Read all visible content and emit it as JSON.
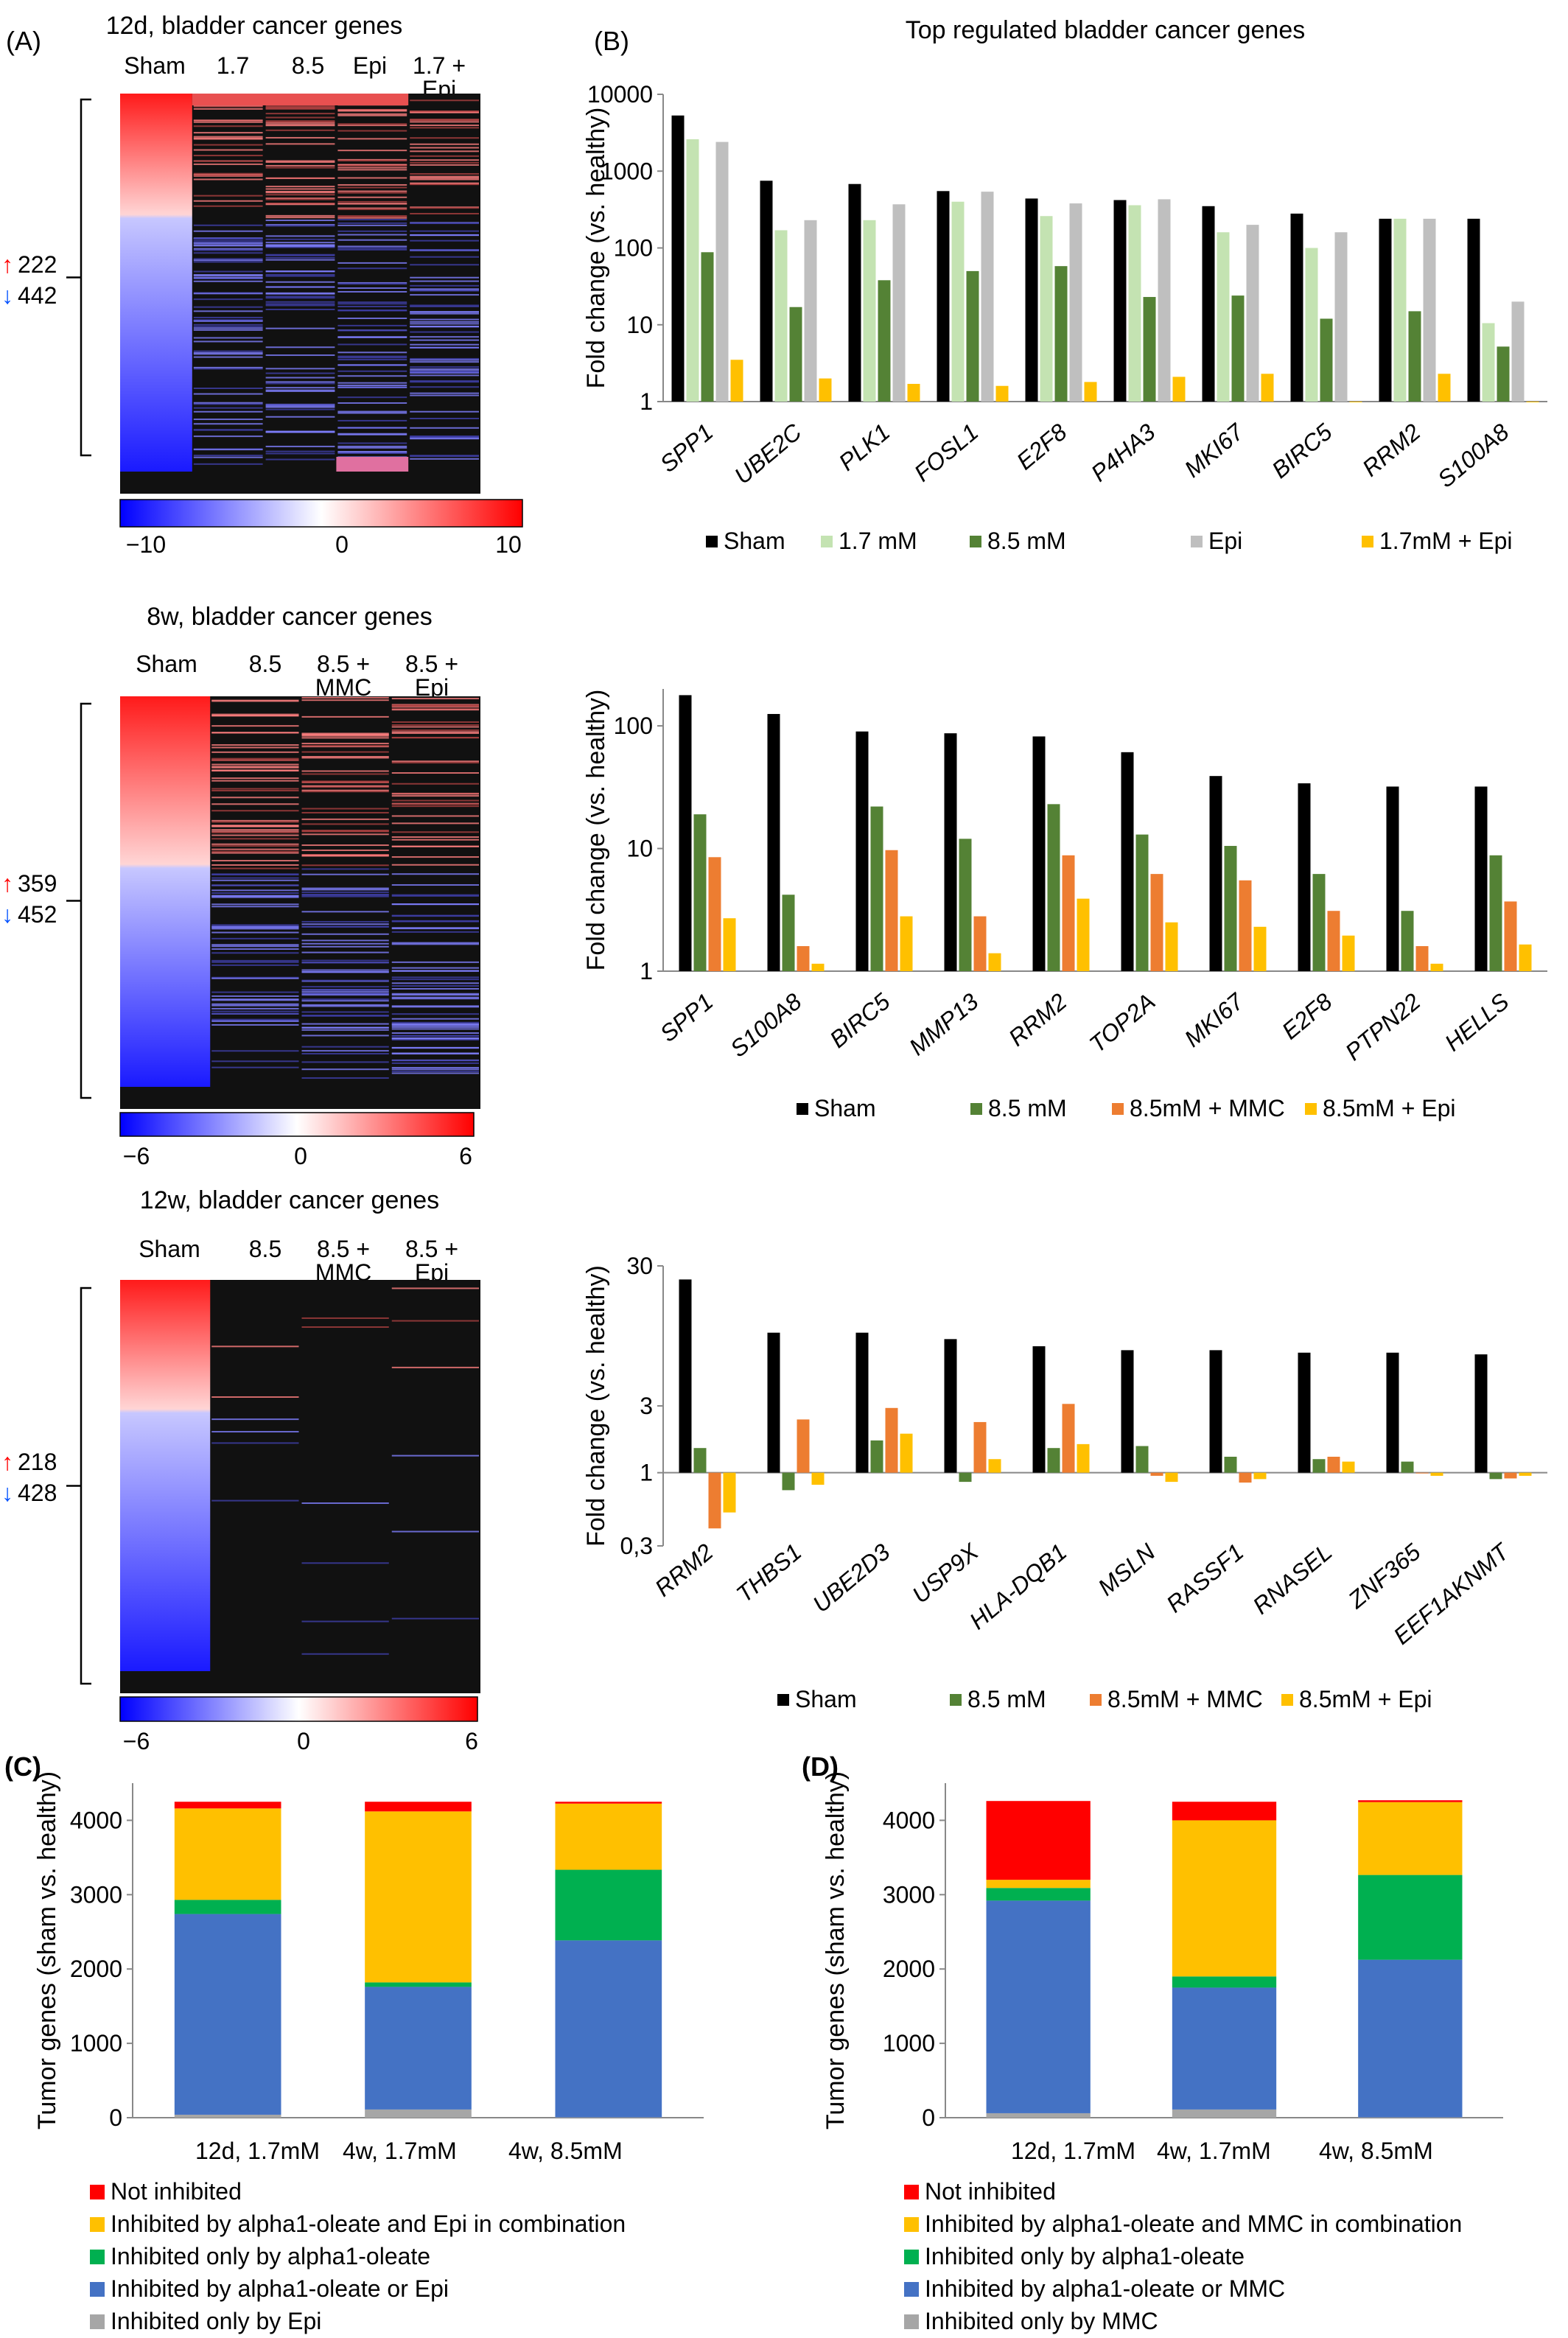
{
  "panel_labels": {
    "A": "(A)",
    "B": "(B)",
    "C": "(C)",
    "D": "(D)"
  },
  "colors": {
    "sham": "#000000",
    "light_green": "#c4e3b2",
    "green": "#548235",
    "gray": "#bfbfbf",
    "yellow": "#ffc000",
    "orange": "#ed7d31",
    "red": "#ff0000",
    "blue": "#4472c4",
    "stack_green": "#00b050",
    "heat_high": "#ff0000",
    "heat_low": "#0000ff"
  },
  "heatmaps": [
    {
      "title": "12d, bladder cancer genes",
      "columns": [
        "Sham",
        "1.7",
        "8.5",
        "Epi",
        "1.7 +\nEpi"
      ],
      "up_count": "222",
      "down_count": "442",
      "scale_ticks": [
        "−10",
        "0",
        "10"
      ],
      "up_fraction": 0.33
    },
    {
      "title": "8w, bladder cancer genes",
      "columns": [
        "Sham",
        "8.5",
        "8.5 +\nMMC",
        "8.5 +\nEpi"
      ],
      "up_count": "359",
      "down_count": "452",
      "scale_ticks": [
        "−6",
        "0",
        "6"
      ],
      "up_fraction": 0.44
    },
    {
      "title": "12w, bladder cancer genes",
      "columns": [
        "Sham",
        "8.5",
        "8.5 +\nMMC",
        "8.5 +\nEpi"
      ],
      "up_count": "218",
      "down_count": "428",
      "scale_ticks": [
        "−6",
        "0",
        "6"
      ],
      "up_fraction": 0.34
    }
  ],
  "chart_data": [
    {
      "type": "bar",
      "log_scale": true,
      "title": "Top regulated bladder cancer genes",
      "ylabel": "Fold change (vs. healthy)",
      "ylim": [
        1,
        10000
      ],
      "yticks": [
        "1",
        "10",
        "100",
        "1000",
        "10000"
      ],
      "ytick_values": [
        1,
        10,
        100,
        1000,
        10000
      ],
      "categories": [
        "SPP1",
        "UBE2C",
        "PLK1",
        "FOSL1",
        "E2F8",
        "P4HA3",
        "MKI67",
        "BIRC5",
        "RRM2",
        "S100A8"
      ],
      "series": [
        {
          "name": "Sham",
          "color": "#000000",
          "values": [
            5300,
            750,
            680,
            550,
            440,
            420,
            350,
            280,
            240,
            240
          ]
        },
        {
          "name": "1.7 mM",
          "color": "#c4e3b2",
          "values": [
            2600,
            170,
            230,
            400,
            260,
            360,
            160,
            100,
            240,
            10.5
          ]
        },
        {
          "name": "8.5 mM",
          "color": "#548235",
          "values": [
            88,
            17,
            38,
            50,
            58,
            23,
            24,
            12,
            15,
            5.2
          ]
        },
        {
          "name": "Epi",
          "color": "#bfbfbf",
          "values": [
            2400,
            230,
            370,
            540,
            380,
            430,
            200,
            160,
            240,
            20
          ]
        },
        {
          "name": "1.7mM + Epi",
          "color": "#ffc000",
          "values": [
            3.5,
            2.0,
            1.7,
            1.6,
            1.8,
            2.1,
            2.3,
            1.0,
            2.3,
            1.0
          ]
        }
      ]
    },
    {
      "type": "bar",
      "log_scale": true,
      "ylabel": "Fold change (vs. healthy)",
      "ylim": [
        1,
        200
      ],
      "yticks": [
        "1",
        "10",
        "100"
      ],
      "ytick_values": [
        1,
        10,
        100
      ],
      "categories": [
        "SPP1",
        "S100A8",
        "BIRC5",
        "MMP13",
        "RRM2",
        "TOP2A",
        "MKI67",
        "E2F8",
        "PTPN22",
        "HELLS"
      ],
      "series": [
        {
          "name": "Sham",
          "color": "#000000",
          "values": [
            178,
            125,
            90,
            87,
            82,
            61,
            39,
            34,
            32,
            32
          ]
        },
        {
          "name": "8.5 mM",
          "color": "#548235",
          "values": [
            19,
            4.2,
            22,
            12,
            23,
            13,
            10.5,
            6.2,
            3.1,
            8.8
          ]
        },
        {
          "name": "8.5mM + MMC",
          "color": "#ed7d31",
          "values": [
            8.5,
            1.6,
            9.7,
            2.8,
            8.8,
            6.2,
            5.5,
            3.1,
            1.6,
            3.7
          ]
        },
        {
          "name": "8.5mM + Epi",
          "color": "#ffc000",
          "values": [
            2.7,
            1.15,
            2.8,
            1.4,
            3.9,
            2.5,
            2.3,
            1.95,
            1.15,
            1.65
          ]
        }
      ]
    },
    {
      "type": "bar",
      "log_scale": true,
      "ylabel": "Fold change (vs. healthy)",
      "ylim": [
        0.3,
        30
      ],
      "yticks": [
        "0,3",
        "1",
        "3",
        "30"
      ],
      "ytick_values": [
        0.3,
        1,
        3,
        30
      ],
      "categories": [
        "RRM2",
        "THBS1",
        "UBE2D3",
        "USP9X",
        "HLA-DQB1",
        "MSLN",
        "RASSF1",
        "RNASEL",
        "ZNF365",
        "EEF1AKNMT"
      ],
      "series": [
        {
          "name": "Sham",
          "color": "#000000",
          "values": [
            24,
            10,
            10,
            9,
            8,
            7.5,
            7.5,
            7.2,
            7.2,
            7.0
          ]
        },
        {
          "name": "8.5 mM",
          "color": "#548235",
          "values": [
            1.5,
            0.75,
            1.7,
            0.86,
            1.5,
            1.55,
            1.3,
            1.25,
            1.2,
            0.9
          ]
        },
        {
          "name": "8.5mM + MMC",
          "color": "#ed7d31",
          "values": [
            0.4,
            2.4,
            2.9,
            2.3,
            3.1,
            0.95,
            0.85,
            1.3,
            1.0,
            0.91
          ]
        },
        {
          "name": "8.5mM + Epi",
          "color": "#ffc000",
          "values": [
            0.52,
            0.82,
            1.9,
            1.25,
            1.6,
            0.86,
            0.9,
            1.2,
            0.95,
            0.95
          ]
        }
      ]
    },
    {
      "type": "bar",
      "stacked": true,
      "ylabel": "Tumor genes (sham vs. healthy)",
      "ylim": [
        0,
        4500
      ],
      "yticks": [
        "0",
        "1000",
        "2000",
        "3000",
        "4000"
      ],
      "ytick_values": [
        0,
        1000,
        2000,
        3000,
        4000
      ],
      "categories": [
        "12d, 1.7mM",
        "4w, 1.7mM",
        "4w, 8.5mM"
      ],
      "series": [
        {
          "name": "Inhibited only by Epi",
          "color": "#a6a6a6",
          "values": [
            40,
            110,
            5
          ]
        },
        {
          "name": "Inhibited by alpha1-oleate or Epi",
          "color": "#4472c4",
          "values": [
            2700,
            1650,
            2380
          ]
        },
        {
          "name": "Inhibited only by alpha1-oleate",
          "color": "#00b050",
          "values": [
            190,
            60,
            950
          ]
        },
        {
          "name": "Inhibited by alpha1-oleate and Epi in combination",
          "color": "#ffc000",
          "values": [
            1230,
            2300,
            890
          ]
        },
        {
          "name": "Not inhibited",
          "color": "#ff0000",
          "values": [
            90,
            130,
            25
          ]
        }
      ]
    },
    {
      "type": "bar",
      "stacked": true,
      "ylabel": "Tumor genes (sham vs. healthy)",
      "ylim": [
        0,
        4500
      ],
      "yticks": [
        "0",
        "1000",
        "2000",
        "3000",
        "4000"
      ],
      "ytick_values": [
        0,
        1000,
        2000,
        3000,
        4000
      ],
      "categories": [
        "12d, 1.7mM",
        "4w, 1.7mM",
        "4w, 8.5mM"
      ],
      "series": [
        {
          "name": "Inhibited only by MMC",
          "color": "#a6a6a6",
          "values": [
            60,
            110,
            5
          ]
        },
        {
          "name": "Inhibited by alpha1-oleate or MMC",
          "color": "#4472c4",
          "values": [
            2860,
            1640,
            2120
          ]
        },
        {
          "name": "Inhibited only by alpha1-oleate",
          "color": "#00b050",
          "values": [
            170,
            150,
            1140
          ]
        },
        {
          "name": "Inhibited by alpha1-oleate and MMC in combination",
          "color": "#ffc000",
          "values": [
            110,
            2100,
            980
          ]
        },
        {
          "name": "Not inhibited",
          "color": "#ff0000",
          "values": [
            1060,
            250,
            25
          ]
        }
      ]
    }
  ]
}
